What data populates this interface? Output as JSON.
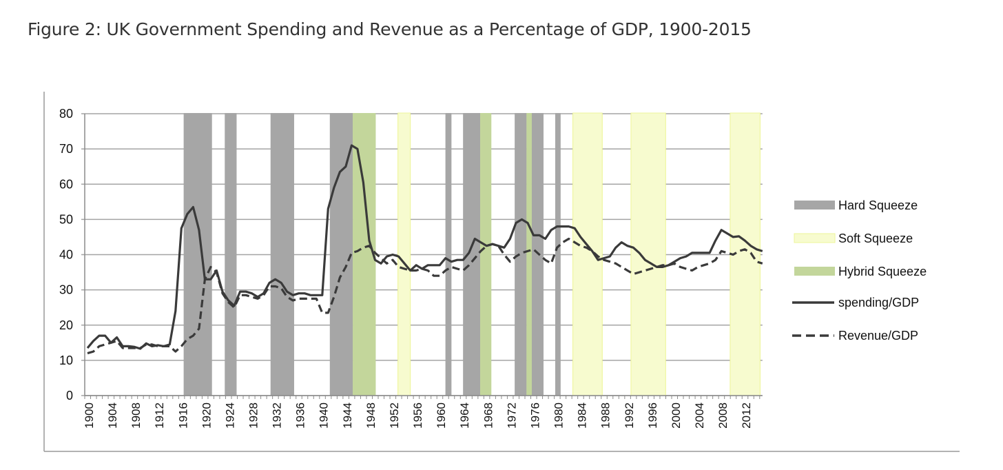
{
  "chart_data": {
    "type": "line",
    "title": "Figure 2: UK Government Spending and Revenue as a Percentage of GDP, 1900-2015",
    "xlabel": "",
    "ylabel": "",
    "xlim": [
      1900,
      2015
    ],
    "ylim": [
      0,
      80
    ],
    "yticks": [
      0,
      10,
      20,
      30,
      40,
      50,
      60,
      70,
      80
    ],
    "xtick_labels": [
      "1900",
      "1904",
      "1908",
      "1912",
      "1916",
      "1920",
      "1924",
      "1928",
      "1932",
      "1936",
      "1940",
      "1944",
      "1948",
      "1952",
      "1956",
      "1960",
      "1964",
      "1968",
      "1972",
      "1976",
      "1980",
      "1984",
      "1988",
      "1992",
      "1996",
      "2000",
      "2004",
      "2008",
      "2012"
    ],
    "grid": "horizontal",
    "legend_position": "right",
    "start_year": 1900,
    "series": [
      {
        "name": "spending/GDP",
        "style": "solid",
        "color": "#3a3a3a",
        "values": [
          13.5,
          15.5,
          17,
          17,
          15,
          16.5,
          14,
          14,
          13.8,
          13.3,
          14.8,
          14,
          14.3,
          14,
          14.5,
          24,
          47.5,
          51.5,
          53.5,
          47,
          33,
          33,
          35.5,
          29.5,
          27,
          25.5,
          29.5,
          29.5,
          29,
          28,
          29,
          32,
          33,
          32,
          29.5,
          28.5,
          29,
          29,
          28.5,
          28.5,
          28.5,
          53,
          59,
          63.5,
          65,
          71,
          70,
          60.5,
          44,
          38.5,
          37.5,
          39.5,
          40,
          39.5,
          37.5,
          35.5,
          37,
          36,
          37,
          37,
          37,
          39,
          38,
          38.5,
          38.5,
          40.5,
          44.5,
          43.5,
          42.5,
          43,
          42.5,
          42,
          44.5,
          49,
          50,
          49,
          45.5,
          45.5,
          44.5,
          47,
          48,
          48,
          48,
          47.5,
          45,
          43,
          41,
          38.5,
          39,
          39.5,
          42,
          43.5,
          42.5,
          42,
          40.5,
          38.5,
          37.5,
          36.5,
          36.5,
          37,
          38,
          39,
          39.5,
          40.5,
          40.5,
          40.5,
          40.5,
          44,
          47,
          46,
          45,
          45.2,
          44,
          42.5,
          41.5,
          41
        ]
      },
      {
        "name": "Revenue/GDP",
        "style": "dashed",
        "color": "#3a3a3a",
        "values": [
          12,
          12.5,
          14,
          14.5,
          15,
          15.5,
          13.5,
          13.5,
          13.5,
          13.5,
          14.5,
          14.5,
          14,
          14,
          14,
          12.5,
          14,
          16,
          17,
          19,
          33,
          36.5,
          35,
          29,
          26.5,
          25,
          28.5,
          28.5,
          28,
          27.5,
          28.5,
          31,
          31,
          30.5,
          28,
          27,
          27.5,
          27.5,
          27.5,
          27.5,
          23.5,
          23.5,
          28,
          33.5,
          36.5,
          40.5,
          41,
          42,
          42.5,
          40.5,
          39,
          37.5,
          38.5,
          36.5,
          36,
          35.5,
          35.5,
          36,
          35.5,
          34,
          34,
          35.5,
          36.5,
          36,
          35.5,
          37,
          39,
          41,
          42.5,
          43,
          42.5,
          40,
          38,
          39.5,
          40.5,
          41,
          41.5,
          40,
          38.5,
          37.5,
          42,
          43.5,
          44.5,
          43.5,
          42.5,
          42,
          41,
          39.5,
          38.5,
          38,
          37.5,
          36.5,
          35.5,
          34.5,
          35,
          35.5,
          36,
          36.5,
          37,
          37,
          37.5,
          36.5,
          36,
          35.5,
          36.5,
          37,
          37.5,
          38.5,
          41,
          40.5,
          40,
          41,
          41.5,
          40.5,
          38,
          37.5
        ]
      }
    ],
    "bands": [
      {
        "type": "Hard Squeeze",
        "from": 1916.4,
        "to": 1921.2
      },
      {
        "type": "Hard Squeeze",
        "from": 1923.4,
        "to": 1925.4
      },
      {
        "type": "Hard Squeeze",
        "from": 1931.2,
        "to": 1935.2
      },
      {
        "type": "Hard Squeeze",
        "from": 1941.3,
        "to": 1945.2
      },
      {
        "type": "Hybrid Squeeze",
        "from": 1945.2,
        "to": 1949.1
      },
      {
        "type": "Soft Squeeze",
        "from": 1952.9,
        "to": 1955.0
      },
      {
        "type": "Hard Squeeze",
        "from": 1961.0,
        "to": 1962.0
      },
      {
        "type": "Hard Squeeze",
        "from": 1964.0,
        "to": 1966.9
      },
      {
        "type": "Hybrid Squeeze",
        "from": 1966.9,
        "to": 1968.8
      },
      {
        "type": "Hard Squeeze",
        "from": 1972.8,
        "to": 1974.8
      },
      {
        "type": "Hybrid Squeeze",
        "from": 1974.8,
        "to": 1975.7
      },
      {
        "type": "Hard Squeeze",
        "from": 1975.7,
        "to": 1977.7
      },
      {
        "type": "Hard Squeeze",
        "from": 1979.7,
        "to": 1980.6
      },
      {
        "type": "Soft Squeeze",
        "from": 1982.7,
        "to": 1987.7
      },
      {
        "type": "Soft Squeeze",
        "from": 1992.6,
        "to": 1998.5
      },
      {
        "type": "Soft Squeeze",
        "from": 2009.5,
        "to": 2014.6
      }
    ],
    "legend": [
      {
        "label": "Hard Squeeze",
        "kind": "swatch",
        "color": "#a6a6a6"
      },
      {
        "label": "Soft Squeeze",
        "kind": "swatch",
        "color": "#f7fbcf"
      },
      {
        "label": "Hybrid Squeeze",
        "kind": "swatch",
        "color": "#c3d69b"
      },
      {
        "label": "spending/GDP",
        "kind": "solid"
      },
      {
        "label": "Revenue/GDP",
        "kind": "dashed"
      }
    ]
  }
}
